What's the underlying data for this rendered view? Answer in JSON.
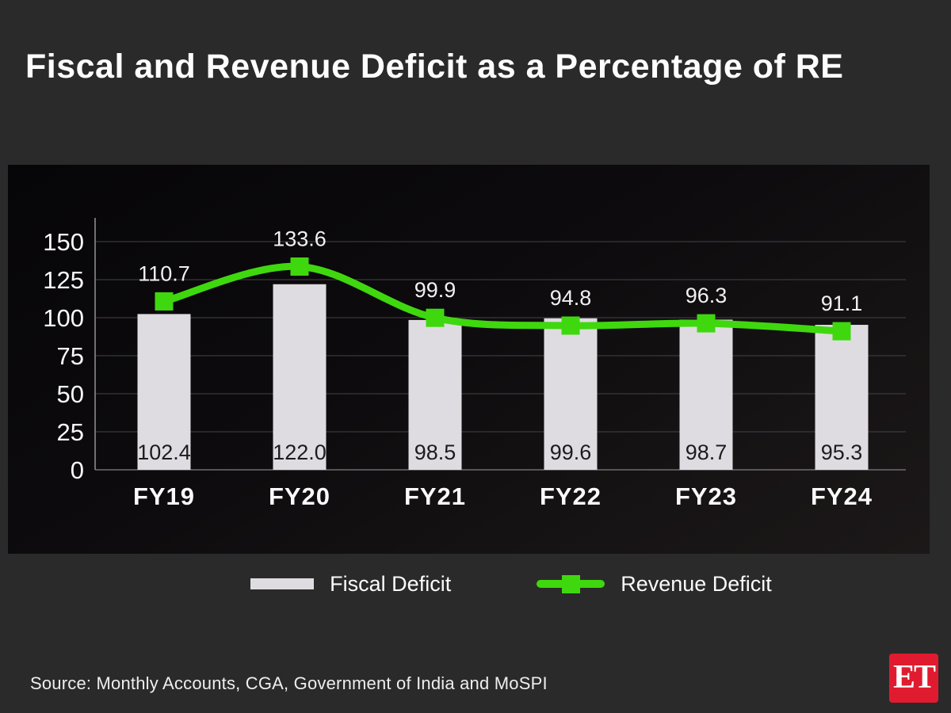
{
  "title": "Fiscal and Revenue Deficit as a Percentage of RE",
  "source": "Source: Monthly Accounts, CGA, Government of India and MoSPI",
  "logo_text": "ET",
  "colors": {
    "background": "#2b2a2a",
    "bar": "#dfdce1",
    "bar_label": "#1c1b1d",
    "line": "#3fd80e",
    "grid": "#454247",
    "baseline": "#6f6c6e",
    "axis": "#8d8a8c",
    "tick_label": "#fbfafb",
    "point_label": "#f2f1f2",
    "logo_red": "#e11b2f"
  },
  "legend": [
    {
      "label": "Fiscal Deficit",
      "type": "bar"
    },
    {
      "label": "Revenue Deficit",
      "type": "line"
    }
  ],
  "chart_data": {
    "type": "bar+line",
    "title": "Fiscal and Revenue Deficit as a Percentage of RE",
    "categories": [
      "FY19",
      "FY20",
      "FY21",
      "FY22",
      "FY23",
      "FY24"
    ],
    "series": [
      {
        "name": "Fiscal Deficit",
        "type": "bar",
        "values": [
          102.4,
          122.0,
          98.5,
          99.6,
          98.7,
          95.3
        ]
      },
      {
        "name": "Revenue Deficit",
        "type": "line",
        "values": [
          110.7,
          133.6,
          99.9,
          94.8,
          96.3,
          91.1
        ]
      }
    ],
    "yticks": [
      0,
      25,
      50,
      75,
      100,
      125,
      150
    ],
    "ylim": [
      0,
      150
    ],
    "xlabel": "",
    "ylabel": "",
    "grid": true,
    "legend_position": "bottom"
  }
}
